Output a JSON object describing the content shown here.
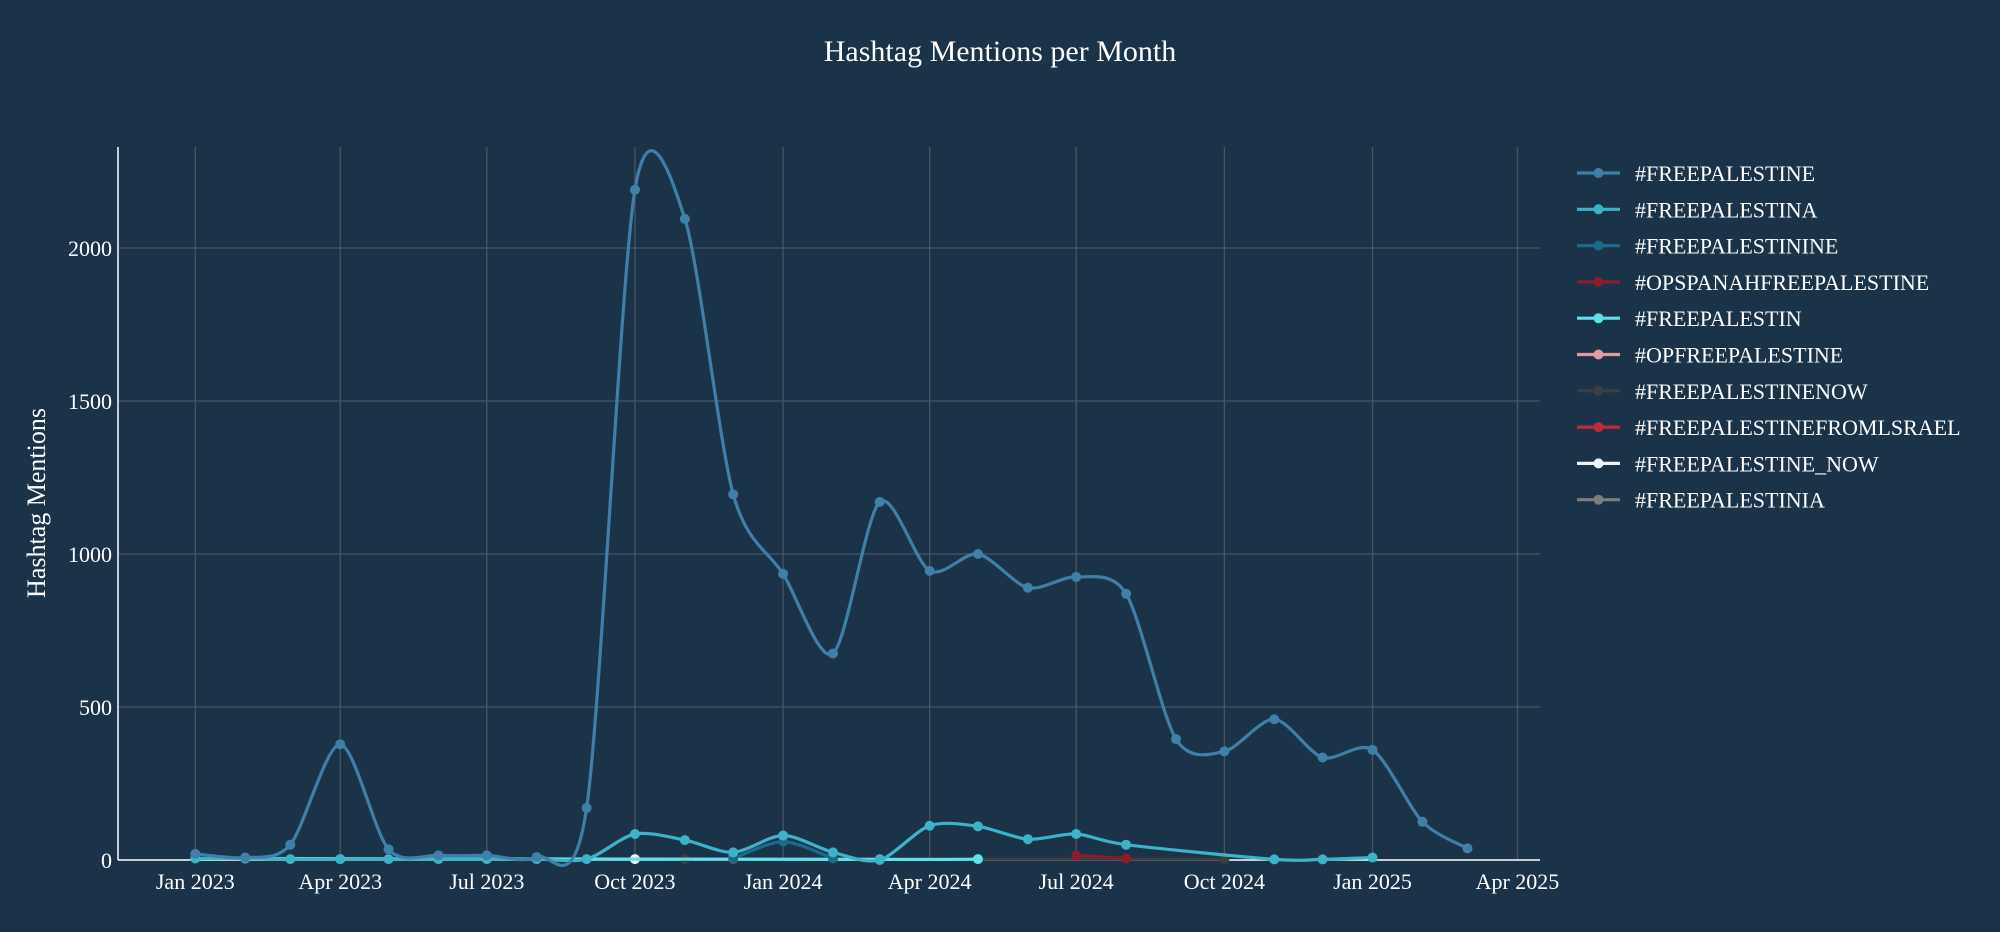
{
  "chart_data": {
    "type": "line",
    "title": "Hashtag Mentions per Month",
    "xlabel": "",
    "ylabel": "Hashtag Mentions",
    "x_range": [
      "2022-11-14",
      "2025-04-15"
    ],
    "ylim": [
      0,
      2330
    ],
    "x_ticks": [
      {
        "date": "2023-01-01",
        "label": "Jan 2023"
      },
      {
        "date": "2023-04-01",
        "label": "Apr 2023"
      },
      {
        "date": "2023-07-01",
        "label": "Jul 2023"
      },
      {
        "date": "2023-10-01",
        "label": "Oct 2023"
      },
      {
        "date": "2024-01-01",
        "label": "Jan 2024"
      },
      {
        "date": "2024-04-01",
        "label": "Apr 2024"
      },
      {
        "date": "2024-07-01",
        "label": "Jul 2024"
      },
      {
        "date": "2024-10-01",
        "label": "Oct 2024"
      },
      {
        "date": "2025-01-01",
        "label": "Jan 2025"
      },
      {
        "date": "2025-04-01",
        "label": "Apr 2025"
      }
    ],
    "y_ticks": [
      0,
      500,
      1000,
      1500,
      2000
    ],
    "grid": true,
    "legend_position": "right",
    "line_shape": "spline",
    "series": [
      {
        "name": "#FREEPALESTINE",
        "color": "#3f7fa8",
        "points": [
          [
            "2023-01-01",
            20
          ],
          [
            "2023-02-01",
            8
          ],
          [
            "2023-03-01",
            50
          ],
          [
            "2023-04-01",
            378
          ],
          [
            "2023-05-01",
            35
          ],
          [
            "2023-06-01",
            15
          ],
          [
            "2023-07-01",
            15
          ],
          [
            "2023-08-01",
            10
          ],
          [
            "2023-09-01",
            170
          ],
          [
            "2023-10-01",
            2190
          ],
          [
            "2023-11-01",
            2095
          ],
          [
            "2023-12-01",
            1195
          ],
          [
            "2024-01-01",
            935
          ],
          [
            "2024-02-01",
            675
          ],
          [
            "2024-03-01",
            1170
          ],
          [
            "2024-04-01",
            945
          ],
          [
            "2024-05-01",
            1000
          ],
          [
            "2024-06-01",
            890
          ],
          [
            "2024-07-01",
            925
          ],
          [
            "2024-08-01",
            870
          ],
          [
            "2024-09-01",
            395
          ],
          [
            "2024-10-01",
            355
          ],
          [
            "2024-11-01",
            460
          ],
          [
            "2024-12-01",
            335
          ],
          [
            "2025-01-01",
            360
          ],
          [
            "2025-02-01",
            125
          ],
          [
            "2025-03-01",
            38
          ]
        ]
      },
      {
        "name": "#FREEPALESTINA",
        "color": "#3db3c9",
        "points": [
          [
            "2023-01-01",
            5
          ],
          [
            "2023-02-01",
            5
          ],
          [
            "2023-03-01",
            3
          ],
          [
            "2023-04-01",
            3
          ],
          [
            "2023-05-01",
            3
          ],
          [
            "2023-06-01",
            3
          ],
          [
            "2023-07-01",
            3
          ],
          [
            "2023-08-01",
            3
          ],
          [
            "2023-09-01",
            3
          ],
          [
            "2023-10-01",
            85
          ],
          [
            "2023-11-01",
            65
          ],
          [
            "2023-12-01",
            25
          ],
          [
            "2024-01-01",
            80
          ],
          [
            "2024-02-01",
            25
          ],
          [
            "2024-03-01",
            0
          ],
          [
            "2024-04-01",
            112
          ],
          [
            "2024-05-01",
            110
          ],
          [
            "2024-06-01",
            68
          ],
          [
            "2024-07-01",
            85
          ],
          [
            "2024-08-01",
            50
          ],
          [
            "2024-11-01",
            2
          ],
          [
            "2024-12-01",
            2
          ],
          [
            "2025-01-01",
            8
          ]
        ]
      },
      {
        "name": "#FREEPALESTININE",
        "color": "#1a6a8c",
        "points": [
          [
            "2023-12-01",
            5
          ],
          [
            "2024-01-01",
            60
          ],
          [
            "2024-02-01",
            5
          ]
        ]
      },
      {
        "name": "#OPSPANAHFREEPALESTINE",
        "color": "#8b1c2b",
        "points": [
          [
            "2024-07-01",
            15
          ],
          [
            "2024-08-01",
            5
          ]
        ]
      },
      {
        "name": "#FREEPALESTIN",
        "color": "#5fe0ea",
        "points": [
          [
            "2023-02-01",
            5
          ],
          [
            "2024-03-01",
            2
          ],
          [
            "2024-05-01",
            3
          ]
        ]
      },
      {
        "name": "#OPFREEPALESTINE",
        "color": "#e09aa0",
        "points": [
          [
            "2023-12-01",
            8
          ]
        ]
      },
      {
        "name": "#FREEPALESTINENOW",
        "color": "#3a3e43",
        "points": [
          [
            "2023-11-01",
            3
          ],
          [
            "2024-10-01",
            3
          ]
        ]
      },
      {
        "name": "#FREEPALESTINEFROMLSRAEL",
        "color": "#c22a35",
        "points": [
          [
            "2023-12-01",
            3
          ]
        ]
      },
      {
        "name": "#FREEPALESTINE_NOW",
        "color": "#eef3f7",
        "points": [
          [
            "2023-10-01",
            3
          ]
        ]
      },
      {
        "name": "#FREEPALESTINIA",
        "color": "#7d7d7d",
        "points": [
          [
            "2023-04-01",
            3
          ]
        ]
      }
    ]
  }
}
